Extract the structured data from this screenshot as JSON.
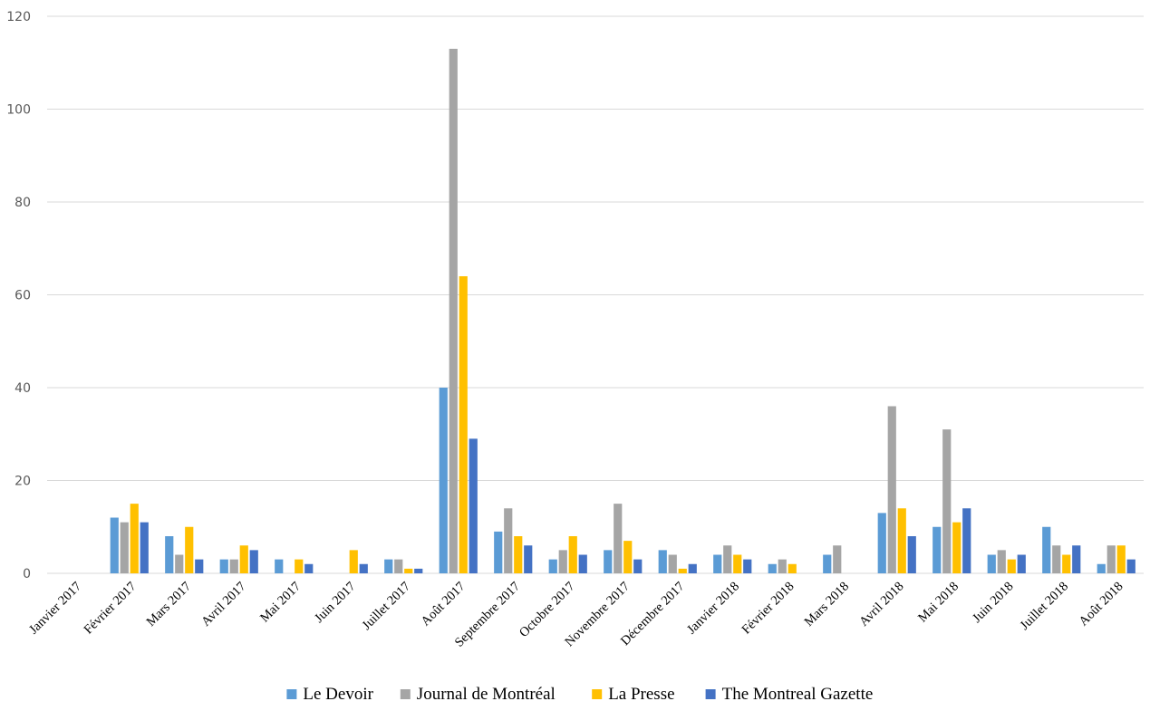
{
  "chart_data": {
    "type": "bar",
    "categories": [
      "Janvier 2017",
      "Février 2017",
      "Mars 2017",
      "Avril 2017",
      "Mai 2017",
      "Juin 2017",
      "Juillet 2017",
      "Août 2017",
      "Septembre 2017",
      "Octobre 2017",
      "Novembre 2017",
      "Décembre 2017",
      "Janvier 2018",
      "Février 2018",
      "Mars 2018",
      "Avril 2018",
      "Mai 2018",
      "Juin 2018",
      "Juillet 2018",
      "Août 2018"
    ],
    "series": [
      {
        "name": "Le Devoir",
        "color": "#5b9bd5",
        "values": [
          0,
          12,
          8,
          3,
          3,
          0,
          3,
          40,
          9,
          3,
          5,
          5,
          4,
          2,
          4,
          13,
          10,
          4,
          10,
          2
        ]
      },
      {
        "name": "Journal de Montréal",
        "color": "#a5a5a5",
        "values": [
          0,
          11,
          4,
          3,
          0,
          0,
          3,
          113,
          14,
          5,
          15,
          4,
          6,
          3,
          6,
          36,
          31,
          5,
          6,
          6
        ]
      },
      {
        "name": "La Presse",
        "color": "#ffc000",
        "values": [
          0,
          15,
          10,
          6,
          3,
          5,
          1,
          64,
          8,
          8,
          7,
          1,
          4,
          2,
          0,
          14,
          11,
          3,
          4,
          6
        ]
      },
      {
        "name": "The Montreal Gazette",
        "color": "#4472c4",
        "values": [
          0,
          11,
          3,
          5,
          2,
          2,
          1,
          29,
          6,
          4,
          3,
          2,
          3,
          0,
          0,
          8,
          14,
          4,
          6,
          3
        ]
      }
    ],
    "yticks": [
      "0",
      "20",
      "40",
      "60",
      "80",
      "100",
      "120"
    ],
    "ylim": [
      0,
      120
    ],
    "grid": true,
    "legend_position": "bottom"
  }
}
